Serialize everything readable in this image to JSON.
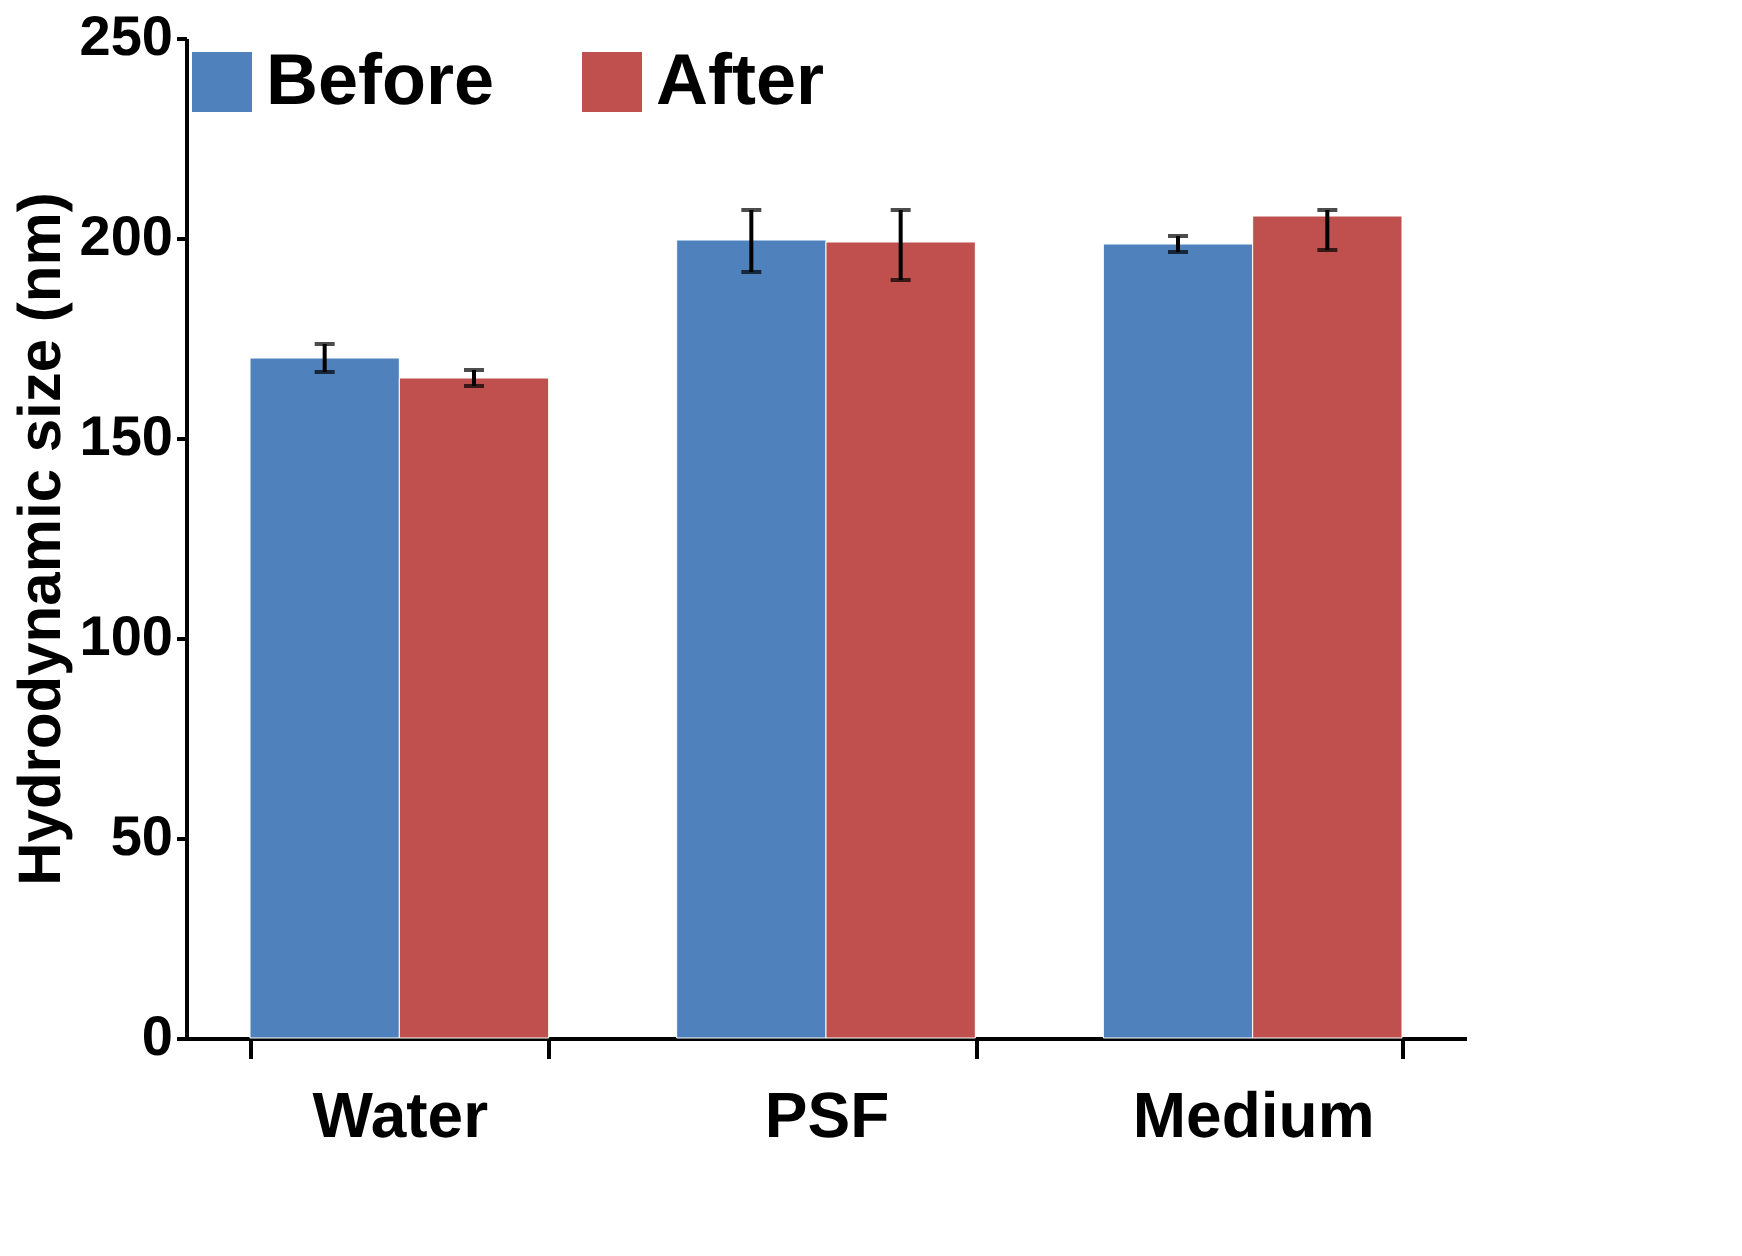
{
  "chart_data": {
    "type": "bar",
    "ylabel": "Hydrodynamic size (nm)",
    "categories": [
      "Water",
      "PSF",
      "Medium"
    ],
    "series": [
      {
        "name": "Before",
        "color": "#4f81bd",
        "values": [
          170,
          199.5,
          198.5
        ],
        "errors": [
          3.5,
          [
            191.5,
            207
          ],
          2
        ]
      },
      {
        "name": "After",
        "color": "#c0504d",
        "values": [
          165,
          199,
          205.5
        ],
        "errors": [
          2,
          [
            189.5,
            207
          ],
          [
            197,
            207
          ]
        ]
      }
    ],
    "ylim": [
      0,
      250
    ],
    "yticks": [
      0,
      50,
      100,
      150,
      200,
      250
    ],
    "grid": false,
    "legend": "top"
  }
}
